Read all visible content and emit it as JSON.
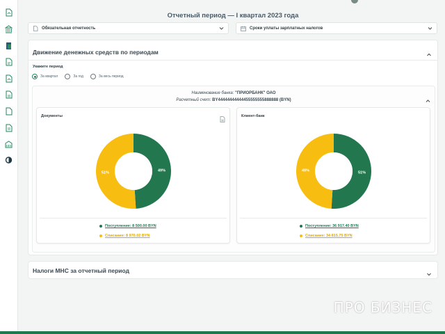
{
  "header": {
    "title": "Отчетный период — I квартал 2023 года"
  },
  "dropdowns": [
    {
      "label": "Обязательная отчетность",
      "icon": "document-icon"
    },
    {
      "label": "Сроки уплаты зарплатных налогов",
      "icon": "calendar-icon"
    }
  ],
  "cash_flow": {
    "title": "Движение денежных средств по периодам",
    "period_label": "Укажите период",
    "radio_options": [
      "За квартал",
      "За год",
      "За весь период"
    ],
    "selected_option": "За квартал"
  },
  "bank": {
    "name_label": "Наименование банка:",
    "name_value": "\"ПРИОРБАНК\" ОАО",
    "account_label": "Расчетный счет:",
    "account_value": "BY44444444444455555555888888 (BYN)"
  },
  "panels": {
    "documents": {
      "title": "Документы",
      "income_label": "Поступление: 8 500.00 BYN",
      "expense_label": "Списание: 8 970.02 BYN",
      "income_pct_label": "49%",
      "expense_pct_label": "51%"
    },
    "client_bank": {
      "title": "Клиент-банк",
      "income_label": "Поступление: 36 917.40 BYN",
      "expense_label": "Списание: 34 815.75 BYN",
      "income_pct_label": "51%",
      "expense_pct_label": "49%"
    }
  },
  "taxes": {
    "title": "Налоги МНС за отчетный период"
  },
  "watermark": "ПРО БИЗНЕС",
  "chart_data": [
    {
      "type": "pie",
      "title": "Документы",
      "categories": [
        "Поступление",
        "Списание"
      ],
      "values": [
        49,
        51
      ],
      "amounts_byn": [
        8500.0,
        8970.02
      ],
      "colors": [
        "#22774e",
        "#f7bd11"
      ]
    },
    {
      "type": "pie",
      "title": "Клиент-банк",
      "categories": [
        "Поступление",
        "Списание"
      ],
      "values": [
        51,
        49
      ],
      "amounts_byn": [
        36917.4,
        34815.75
      ],
      "colors": [
        "#22774e",
        "#f7bd11"
      ]
    }
  ],
  "colors": {
    "accent_green": "#22774e",
    "accent_yellow": "#f7bd11",
    "bottom_bar": "#1e7a4e"
  }
}
